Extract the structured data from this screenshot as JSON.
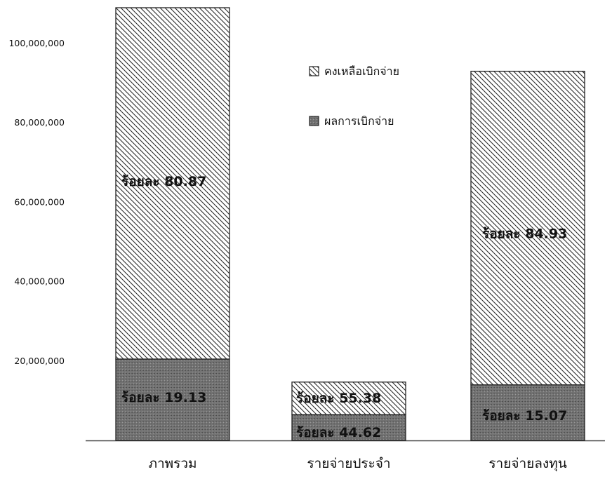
{
  "chart_data": {
    "type": "bar",
    "stacked": true,
    "categories": [
      "ภาพรวม",
      "รายจ่ายประจำ",
      "รายจ่ายลงทุน"
    ],
    "series": [
      {
        "name": "ผลการเบิกจ่าย",
        "values": [
          20500000,
          6500000,
          14000000
        ],
        "labels": [
          "ร้อยละ 19.13",
          "ร้อยละ 44.62",
          "ร้อยละ 15.07"
        ]
      },
      {
        "name": "คงเหลือเบิกจ่าย",
        "values": [
          88500000,
          8200000,
          79000000
        ],
        "labels": [
          "ร้อยละ 80.87",
          "ร้อยละ 55.38",
          "ร้อยละ 84.93"
        ]
      }
    ],
    "y_ticks": [
      "20,000,000",
      "40,000,000",
      "60,000,000",
      "80,000,000",
      "100,000,000"
    ],
    "ylim": [
      0,
      109000000
    ],
    "grid": false,
    "legend": "top-center",
    "title": "",
    "xlabel": "",
    "ylabel": "",
    "colors": {
      "disbursed": "#6e6e6e",
      "remaining": "#ffffff",
      "hatch": "#2a2a2a"
    }
  }
}
